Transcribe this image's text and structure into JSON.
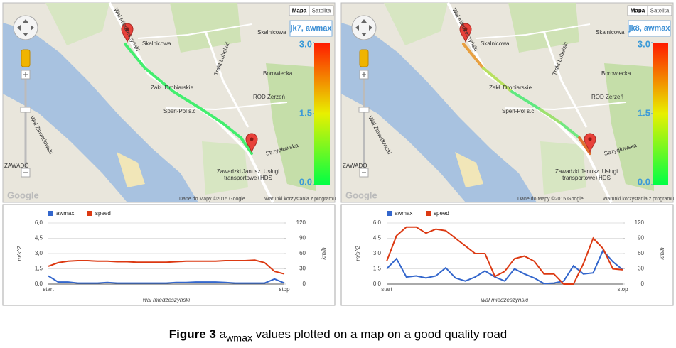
{
  "chart_data": [
    {
      "type": "line",
      "x_label": "wał miedzeszyński",
      "y_label": "m/s^2",
      "y2_label": "km/h",
      "categories": [
        "start",
        null,
        null,
        null,
        null,
        null,
        null,
        null,
        null,
        null,
        null,
        null,
        null,
        null,
        null,
        null,
        null,
        null,
        null,
        null,
        null,
        null,
        null,
        null,
        "stop"
      ],
      "series": [
        {
          "name": "awmax",
          "color": "#3366cc",
          "values": [
            0.8,
            0.2,
            0.2,
            0.1,
            0.1,
            0.1,
            0.15,
            0.1,
            0.1,
            0.1,
            0.1,
            0.1,
            0.1,
            0.15,
            0.15,
            0.2,
            0.2,
            0.2,
            0.15,
            0.1,
            0.1,
            0.1,
            0.1,
            0.5,
            0.1
          ]
        },
        {
          "name": "speed",
          "color": "#dc3912",
          "axis": "y2",
          "values": [
            35,
            42,
            45,
            46,
            46,
            45,
            45,
            44,
            44,
            43,
            43,
            43,
            43,
            44,
            45,
            45,
            45,
            45,
            46,
            46,
            46,
            47,
            42,
            25,
            20
          ]
        }
      ],
      "ylim": [
        0,
        6
      ],
      "yticks": [
        {
          "value": 0,
          "label": "0,0"
        },
        {
          "value": 1.5,
          "label": "1,5"
        },
        {
          "value": 3,
          "label": "3,0"
        },
        {
          "value": 4.5,
          "label": "4,5"
        },
        {
          "value": 6,
          "label": "6,0"
        }
      ],
      "y2lim": [
        0,
        120
      ],
      "y2ticks": [
        0,
        30,
        60,
        90,
        120
      ],
      "grid": true,
      "legend": "top"
    },
    {
      "type": "line",
      "x_label": "wał miedzeszyński",
      "y_label": "m/s^2",
      "y2_label": "km/h",
      "categories": [
        "start",
        null,
        null,
        null,
        null,
        null,
        null,
        null,
        null,
        null,
        null,
        null,
        null,
        null,
        null,
        null,
        null,
        null,
        null,
        null,
        null,
        null,
        null,
        null,
        "stop"
      ],
      "series": [
        {
          "name": "awmax",
          "color": "#3366cc",
          "values": [
            1.5,
            2.5,
            0.7,
            0.8,
            0.6,
            0.8,
            1.6,
            0.6,
            0.3,
            0.7,
            1.3,
            0.7,
            0.3,
            1.5,
            1.0,
            0.6,
            0.05,
            0.1,
            0.3,
            1.8,
            1.0,
            1.1,
            3.3,
            2.2,
            1.4
          ]
        },
        {
          "name": "speed",
          "color": "#dc3912",
          "axis": "y2",
          "values": [
            45,
            95,
            112,
            112,
            100,
            108,
            105,
            90,
            75,
            60,
            60,
            15,
            25,
            50,
            55,
            45,
            20,
            20,
            0,
            0,
            40,
            90,
            70,
            30,
            28
          ]
        }
      ],
      "ylim": [
        0,
        6
      ],
      "yticks": [
        {
          "value": 0,
          "label": "0,0"
        },
        {
          "value": 1.5,
          "label": "1,5"
        },
        {
          "value": 3,
          "label": "3,0"
        },
        {
          "value": 4.5,
          "label": "4,5"
        },
        {
          "value": 6,
          "label": "6,0"
        }
      ],
      "y2lim": [
        0,
        120
      ],
      "y2ticks": [
        0,
        30,
        60,
        90,
        120
      ],
      "grid": true,
      "legend": "top"
    }
  ],
  "maps": [
    {
      "title": "jk7, awmax",
      "buttons": [
        "Mapa",
        "Satelita"
      ],
      "colorbar": {
        "lim": [
          0,
          3
        ],
        "ticks": [
          {
            "value": 3,
            "label": "3.0"
          },
          {
            "value": 1.5,
            "label": "1.5"
          },
          {
            "value": 0,
            "label": "0.0"
          }
        ]
      },
      "labels": [
        "Skalnicowa",
        "Skalnicowa",
        "Wał Miedzeszyński",
        "Zakł. Drobiarskie",
        "Trakt Lubelski",
        "ROD Zerzeń",
        "Borowiecka",
        "Sperl-Pol s.c",
        "Strzygłowska",
        "Zawadzki Janusz. Usługi",
        "transportowe+HDS",
        "Wał Zawadowski",
        "ZAWADÓ"
      ],
      "attribution": [
        "Dane do Mapy ©2015 Google",
        "Warunki korzystania z programu"
      ],
      "logo": "Google"
    },
    {
      "title": "jk8, awmax",
      "buttons": [
        "Mapa",
        "Satelita"
      ],
      "colorbar": {
        "lim": [
          0,
          3
        ],
        "ticks": [
          {
            "value": 3,
            "label": "3.0"
          },
          {
            "value": 1.5,
            "label": "1.5"
          },
          {
            "value": 0,
            "label": "0.0"
          }
        ]
      },
      "labels": [
        "Skalnicowa",
        "Skalnicowa",
        "Wał Miedzeszyński",
        "Zakł. Drobiarskie",
        "Trakt Lubelski",
        "ROD Zerzeń",
        "Borowiecka",
        "Sperl-Pol s.c",
        "Strzygłowska",
        "Zawadzki Janusz. Usługi",
        "transportowe+HDS",
        "Wał Zawadowski",
        "ZAWADÓ"
      ],
      "attribution": [
        "Dane do Mapy ©2015 Google",
        "Warunki korzystania z programu"
      ],
      "logo": "Google"
    }
  ],
  "caption": {
    "label": "Figure 3",
    "text_before": "a",
    "subscript": "wmax",
    "text_after": " values plotted on a map on a good quality road"
  }
}
